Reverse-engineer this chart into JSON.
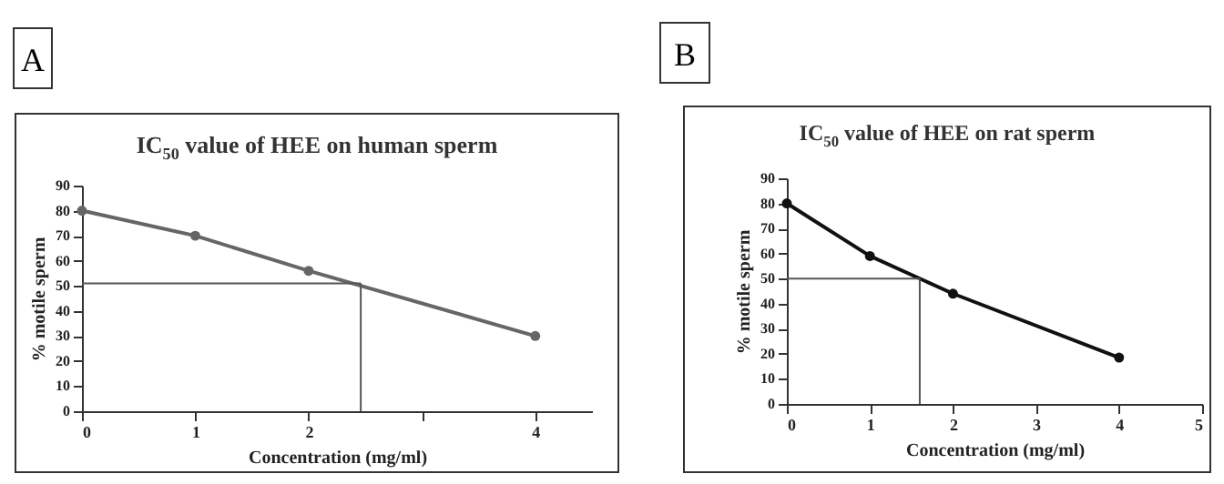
{
  "chart_data": [
    {
      "type": "line",
      "title": "IC$_{50}$ value of HEE on human sperm",
      "xlabel": "Concentration (mg/ml)",
      "ylabel": "% motile sperm",
      "annotations": [
        "A"
      ],
      "x": [
        0,
        1,
        2,
        4
      ],
      "series": [
        {
          "color": "#666666",
          "values": [
            80,
            70,
            56,
            30
          ]
        }
      ],
      "xlim": [
        0,
        4.5
      ],
      "xticks": [
        0,
        1,
        2,
        {
          "value": 3,
          "label": null
        },
        4
      ],
      "ylim": [
        0,
        90
      ],
      "yticks": [
        0,
        10,
        20,
        30,
        40,
        50,
        60,
        70,
        80,
        90
      ],
      "ref_lines": [
        {
          "axis": "y",
          "value": 51
        },
        {
          "axis": "x",
          "value": 2.46
        }
      ],
      "marker": "circle",
      "grid": false,
      "legend": false
    },
    {
      "type": "line",
      "title": "IC$_{50}$ value of HEE on rat sperm",
      "xlabel": "Concentration (mg/ml)",
      "ylabel": "% motile sperm",
      "annotations": [
        "B"
      ],
      "x": [
        0,
        1,
        2,
        4
      ],
      "series": [
        {
          "color": "#111111",
          "values": [
            80,
            59,
            44,
            18.5
          ]
        }
      ],
      "xlim": [
        0,
        5
      ],
      "xticks": [
        0,
        1,
        2,
        3,
        4,
        5
      ],
      "ylim": [
        0,
        90
      ],
      "yticks": [
        0,
        10,
        20,
        30,
        40,
        50,
        60,
        70,
        80,
        90
      ],
      "ref_lines": [
        {
          "axis": "y",
          "value": 50
        },
        {
          "axis": "x",
          "value": 1.6
        }
      ],
      "marker": "circle",
      "grid": false,
      "legend": false
    }
  ]
}
